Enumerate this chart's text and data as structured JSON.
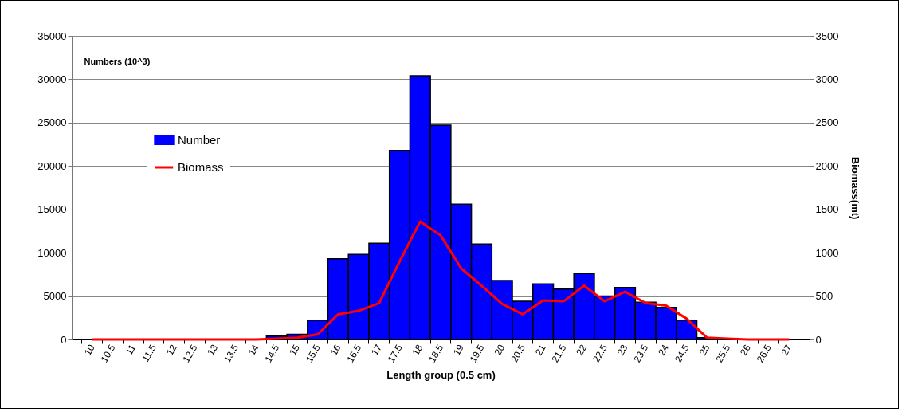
{
  "chart_data": {
    "type": "bar",
    "xlabel": "Length group (0.5 cm)",
    "ylabel": "Numbers (10^3)",
    "y2label": "Biomass(mt)",
    "categories": [
      "10",
      "10.5",
      "11",
      "11.5",
      "12",
      "12.5",
      "13",
      "13.5",
      "14",
      "14.5",
      "15",
      "15.5",
      "16",
      "16.5",
      "17",
      "17.5",
      "18",
      "18.5",
      "19",
      "19.5",
      "20",
      "20.5",
      "21",
      "21.5",
      "22",
      "22.5",
      "23",
      "23.5",
      "24",
      "24.5",
      "25",
      "25.5",
      "26",
      "26.5",
      "27"
    ],
    "series": [
      {
        "name": "Number",
        "color": "#0000ff",
        "values": [
          0,
          0,
          0,
          0,
          0,
          0,
          0,
          0,
          0,
          400,
          600,
          2200,
          9300,
          9800,
          11100,
          21800,
          30400,
          24700,
          15600,
          11000,
          6800,
          4400,
          6400,
          5800,
          7600,
          5000,
          6000,
          4300,
          3700,
          2200,
          200,
          0,
          0,
          0,
          0
        ]
      },
      {
        "name": "Biomass",
        "type": "line",
        "axis": "y2",
        "color": "#ff0000",
        "values": [
          0,
          0,
          0,
          0,
          0,
          0,
          0,
          0,
          0,
          10,
          20,
          60,
          290,
          330,
          420,
          900,
          1360,
          1200,
          820,
          620,
          410,
          290,
          450,
          440,
          620,
          440,
          550,
          420,
          390,
          240,
          20,
          10,
          0,
          0,
          0
        ]
      }
    ],
    "ylim": [
      0,
      35000
    ],
    "yticks": [
      0,
      5000,
      10000,
      15000,
      20000,
      25000,
      30000,
      35000
    ],
    "y2lim": [
      0,
      3500
    ],
    "y2ticks": [
      0,
      500,
      1000,
      1500,
      2000,
      2500,
      3000,
      3500
    ],
    "grid": "y",
    "legend": "top left"
  }
}
